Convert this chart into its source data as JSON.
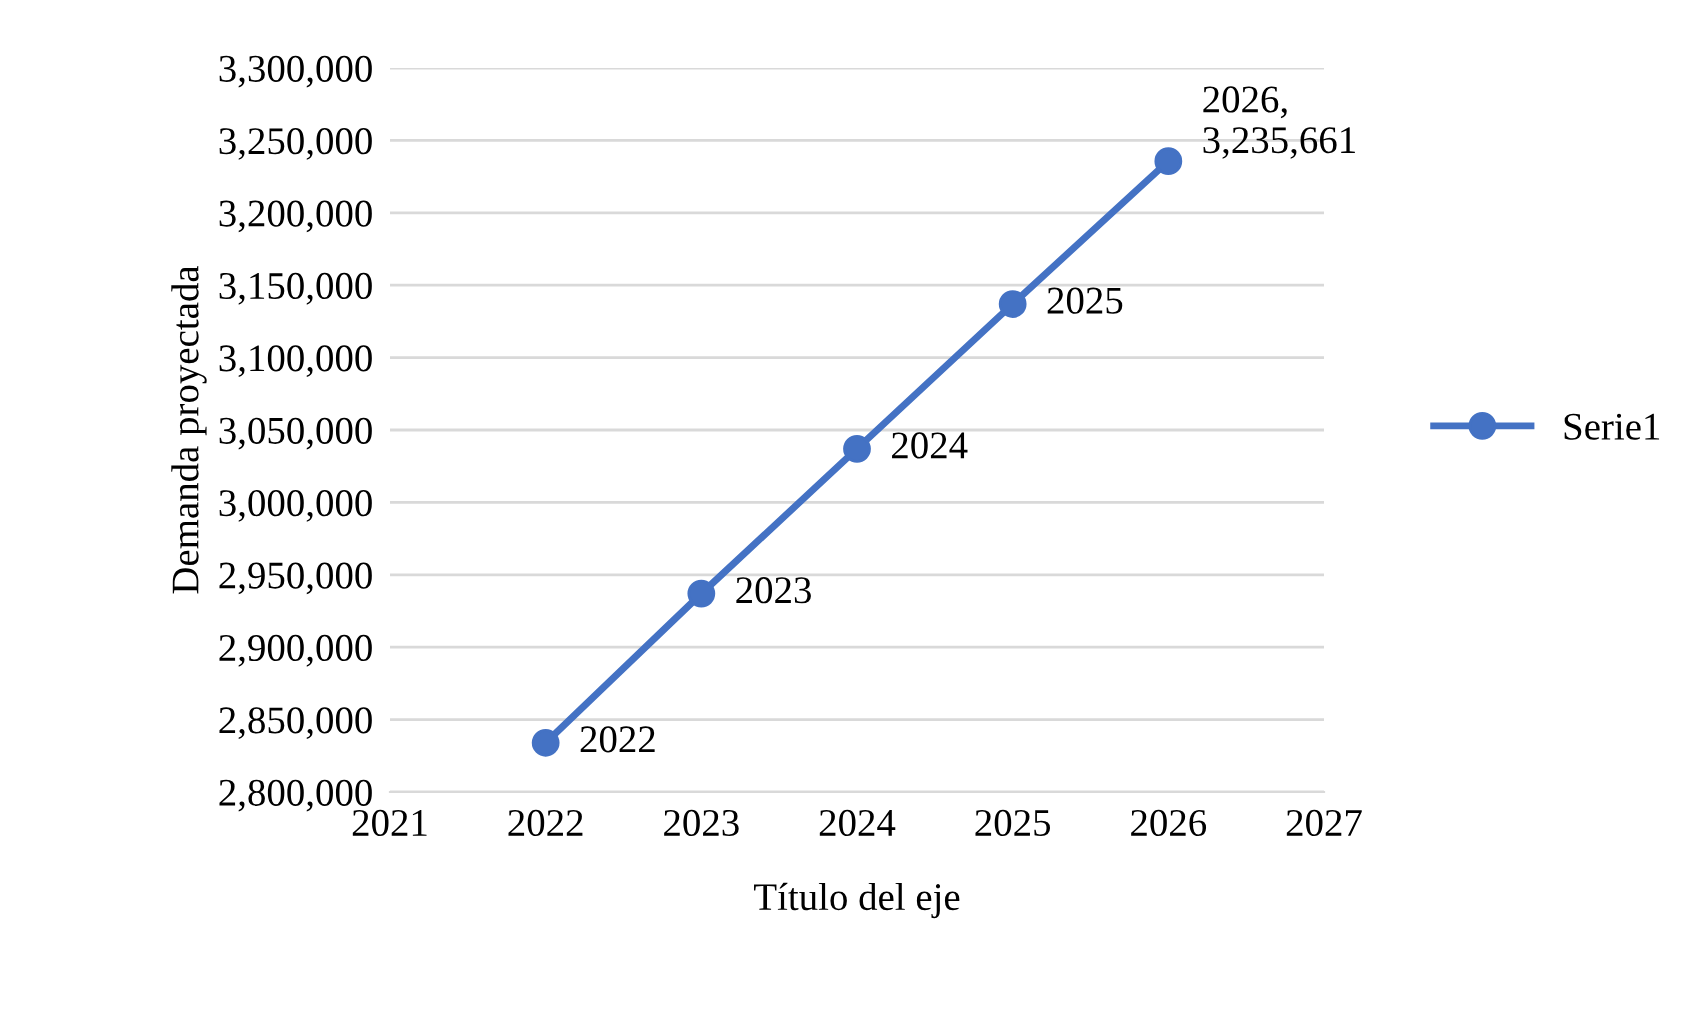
{
  "chart_data": {
    "type": "line",
    "xlabel": "Título del eje",
    "ylabel": "Demanda proyectada",
    "x": [
      2022,
      2023,
      2024,
      2025,
      2026
    ],
    "series": [
      {
        "name": "Serie1",
        "color": "#4472c4",
        "values": [
          2834000,
          2937000,
          3037000,
          3137000,
          3235661
        ]
      }
    ],
    "annotations": [
      {
        "text": "2022",
        "x": 2022,
        "y": 2834000
      },
      {
        "text": "2023",
        "x": 2023,
        "y": 2937000
      },
      {
        "text": "2024",
        "x": 2024,
        "y": 3037000
      },
      {
        "text": "2025",
        "x": 2025,
        "y": 3137000
      },
      {
        "text": "2026,\n3,235,661",
        "x": 2026,
        "y": 3235661
      }
    ],
    "xlim": [
      2021,
      2027
    ],
    "xticks": [
      2021,
      2022,
      2023,
      2024,
      2025,
      2026,
      2027
    ],
    "ylim": [
      2800000,
      3300000
    ],
    "yticks": [
      {
        "value": 2800000,
        "label": "2,800,000"
      },
      {
        "value": 2850000,
        "label": "2,850,000"
      },
      {
        "value": 2900000,
        "label": "2,900,000"
      },
      {
        "value": 2950000,
        "label": "2,950,000"
      },
      {
        "value": 3000000,
        "label": "3,000,000"
      },
      {
        "value": 3050000,
        "label": "3,050,000"
      },
      {
        "value": 3100000,
        "label": "3,100,000"
      },
      {
        "value": 3150000,
        "label": "3,150,000"
      },
      {
        "value": 3200000,
        "label": "3,200,000"
      },
      {
        "value": 3250000,
        "label": "3,250,000"
      },
      {
        "value": 3300000,
        "label": "3,300,000"
      }
    ],
    "grid": "y",
    "legend": "right",
    "marker": "circle",
    "line_style": "solid"
  }
}
